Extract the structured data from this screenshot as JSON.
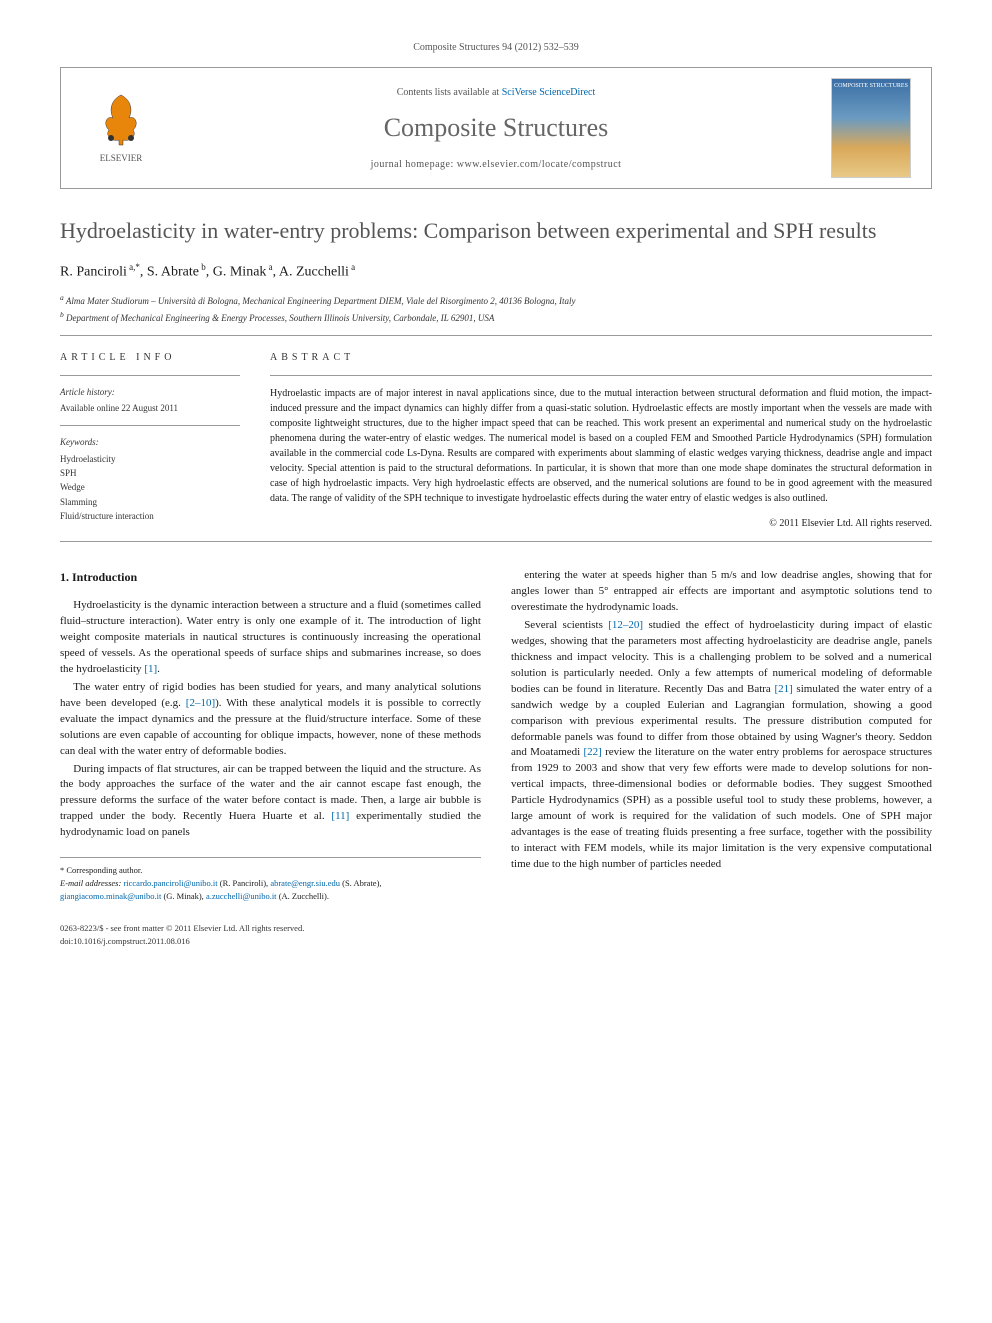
{
  "citation": "Composite Structures 94 (2012) 532–539",
  "header": {
    "publisher": "ELSEVIER",
    "contents_prefix": "Contents lists available at ",
    "contents_link": "SciVerse ScienceDirect",
    "journal": "Composite Structures",
    "homepage_prefix": "journal homepage: ",
    "homepage": "www.elsevier.com/locate/compstruct",
    "cover_text": "COMPOSITE STRUCTURES"
  },
  "title": "Hydroelasticity in water-entry problems: Comparison between experimental and SPH results",
  "authors_html": "R. Panciroli<sup> a,*</sup>, S. Abrate<sup> b</sup>, G. Minak<sup> a</sup>, A. Zucchelli<sup> a</sup>",
  "affiliations": {
    "a": "Alma Mater Studiorum – Università di Bologna, Mechanical Engineering Department DIEM, Viale del Risorgimento 2, 40136 Bologna, Italy",
    "b": "Department of Mechanical Engineering & Energy Processes, Southern Illinois University, Carbondale, IL 62901, USA"
  },
  "info": {
    "heading": "ARTICLE INFO",
    "history_label": "Article history:",
    "history_text": "Available online 22 August 2011",
    "keywords_label": "Keywords:",
    "keywords": [
      "Hydroelasticity",
      "SPH",
      "Wedge",
      "Slamming",
      "Fluid/structure interaction"
    ]
  },
  "abstract": {
    "heading": "ABSTRACT",
    "text": "Hydroelastic impacts are of major interest in naval applications since, due to the mutual interaction between structural deformation and fluid motion, the impact-induced pressure and the impact dynamics can highly differ from a quasi-static solution. Hydroelastic effects are mostly important when the vessels are made with composite lightweight structures, due to the higher impact speed that can be reached. This work present an experimental and numerical study on the hydroelastic phenomena during the water-entry of elastic wedges. The numerical model is based on a coupled FEM and Smoothed Particle Hydrodynamics (SPH) formulation available in the commercial code Ls-Dyna. Results are compared with experiments about slamming of elastic wedges varying thickness, deadrise angle and impact velocity. Special attention is paid to the structural deformations. In particular, it is shown that more than one mode shape dominates the structural deformation in case of high hydroelastic impacts. Very high hydroelastic effects are observed, and the numerical solutions are found to be in good agreement with the measured data. The range of validity of the SPH technique to investigate hydroelastic effects during the water entry of elastic wedges is also outlined.",
    "copyright": "© 2011 Elsevier Ltd. All rights reserved."
  },
  "body": {
    "section_heading": "1. Introduction",
    "left_paragraphs": [
      "Hydroelasticity is the dynamic interaction between a structure and a fluid (sometimes called fluid–structure interaction). Water entry is only one example of it. The introduction of light weight composite materials in nautical structures is continuously increasing the operational speed of vessels. As the operational speeds of surface ships and submarines increase, so does the hydroelasticity [1].",
      "The water entry of rigid bodies has been studied for years, and many analytical solutions have been developed (e.g. [2–10]). With these analytical models it is possible to correctly evaluate the impact dynamics and the pressure at the fluid/structure interface. Some of these solutions are even capable of accounting for oblique impacts, however, none of these methods can deal with the water entry of deformable bodies.",
      "During impacts of flat structures, air can be trapped between the liquid and the structure. As the body approaches the surface of the water and the air cannot escape fast enough, the pressure deforms the surface of the water before contact is made. Then, a large air bubble is trapped under the body. Recently Huera Huarte et al. [11] experimentally studied the hydrodynamic load on panels"
    ],
    "right_paragraphs": [
      "entering the water at speeds higher than 5 m/s and low deadrise angles, showing that for angles lower than 5° entrapped air effects are important and asymptotic solutions tend to overestimate the hydrodynamic loads.",
      "Several scientists [12–20] studied the effect of hydroelasticity during impact of elastic wedges, showing that the parameters most affecting hydroelasticity are deadrise angle, panels thickness and impact velocity. This is a challenging problem to be solved and a numerical solution is particularly needed. Only a few attempts of numerical modeling of deformable bodies can be found in literature. Recently Das and Batra [21] simulated the water entry of a sandwich wedge by a coupled Eulerian and Lagrangian formulation, showing a good comparison with previous experimental results. The pressure distribution computed for deformable panels was found to differ from those obtained by using Wagner's theory. Seddon and Moatamedi [22] review the literature on the water entry problems for aerospace structures from 1929 to 2003 and show that very few efforts were made to develop solutions for non-vertical impacts, three-dimensional bodies or deformable bodies. They suggest Smoothed Particle Hydrodynamics (SPH) as a possible useful tool to study these problems, however, a large amount of work is required for the validation of such models. One of SPH major advantages is the ease of treating fluids presenting a free surface, together with the possibility to interact with FEM models, while its major limitation is the very expensive computational time due to the high number of particles needed"
    ]
  },
  "corr": {
    "label": "* Corresponding author.",
    "email_label": "E-mail addresses:",
    "emails": [
      {
        "addr": "riccardo.panciroli@unibo.it",
        "who": "(R. Panciroli)"
      },
      {
        "addr": "abrate@engr.siu.edu",
        "who": "(S. Abrate)"
      },
      {
        "addr": "giangiacomo.minak@unibo.it",
        "who": "(G. Minak)"
      },
      {
        "addr": "a.zucchelli@unibo.it",
        "who": "(A. Zucchelli)."
      }
    ]
  },
  "footer": {
    "issn": "0263-8223/$ - see front matter © 2011 Elsevier Ltd. All rights reserved.",
    "doi": "doi:10.1016/j.compstruct.2011.08.016"
  }
}
